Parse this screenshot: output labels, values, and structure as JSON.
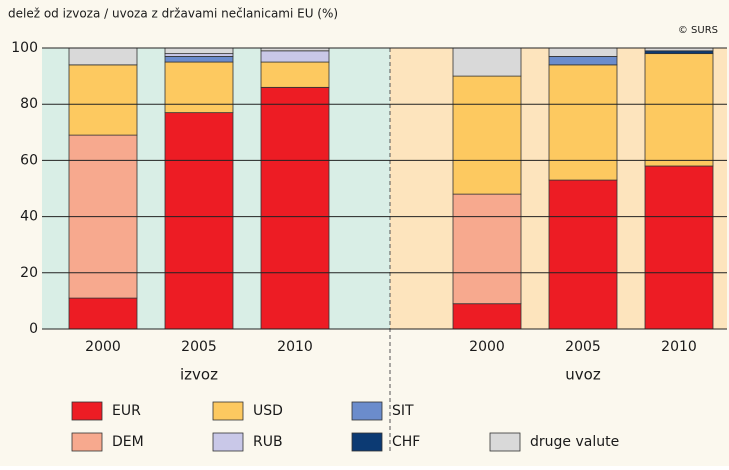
{
  "chart_data": {
    "type": "stacked_bar",
    "title": "delež od izvoza / uvoza z državami nečlanicami EU  (%)",
    "source": "© SURS",
    "categories": [
      "2000",
      "2005",
      "2010",
      "2000",
      "2005",
      "2010"
    ],
    "groups": [
      "izvoz",
      "uvoz"
    ],
    "series": [
      {
        "name": "EUR",
        "color": "#ed1c24",
        "values": [
          11,
          77,
          86,
          9,
          53,
          58
        ]
      },
      {
        "name": "DEM",
        "color": "#f7a98e",
        "values": [
          58,
          0,
          0,
          39,
          0,
          0
        ]
      },
      {
        "name": "USD",
        "color": "#fdc960",
        "values": [
          25,
          18,
          9,
          42,
          41,
          40
        ]
      },
      {
        "name": "SIT",
        "color": "#6b8ccc",
        "values": [
          0,
          2,
          0,
          0,
          3,
          0
        ]
      },
      {
        "name": "RUB",
        "color": "#c9c8e8",
        "values": [
          0,
          1,
          4,
          0,
          0,
          0
        ]
      },
      {
        "name": "CHF",
        "color": "#0c3a73",
        "values": [
          0,
          0,
          0,
          0,
          0,
          1
        ]
      },
      {
        "name": "druge valute",
        "color": "#d9d9d9",
        "values": [
          6,
          2,
          1,
          10,
          3,
          1
        ]
      }
    ],
    "ylim": [
      0,
      100
    ],
    "yticks": [
      0,
      20,
      40,
      60,
      80,
      100
    ],
    "grid": true
  }
}
